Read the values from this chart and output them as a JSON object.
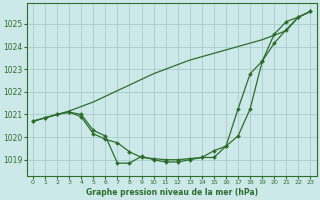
{
  "title": "Graphe pression niveau de la mer (hPa)",
  "bg_color": "#cce8e8",
  "grid_color": "#aacccc",
  "line_color": "#2d6e2d",
  "xlim": [
    -0.5,
    23.5
  ],
  "ylim": [
    1018.3,
    1025.9
  ],
  "yticks": [
    1019,
    1020,
    1021,
    1022,
    1023,
    1024,
    1025
  ],
  "xticks": [
    0,
    1,
    2,
    3,
    4,
    5,
    6,
    7,
    8,
    9,
    10,
    11,
    12,
    13,
    14,
    15,
    16,
    17,
    18,
    19,
    20,
    21,
    22,
    23
  ],
  "line1_x": [
    0,
    1,
    2,
    3,
    4,
    5,
    6,
    7,
    8,
    9,
    10,
    11,
    12,
    13,
    14,
    15,
    16,
    17,
    18,
    19,
    20,
    21,
    22,
    23
  ],
  "line1_y": [
    1020.7,
    1020.85,
    1021.0,
    1021.15,
    1021.35,
    1021.55,
    1021.8,
    1022.05,
    1022.3,
    1022.55,
    1022.8,
    1023.0,
    1023.2,
    1023.4,
    1023.55,
    1023.7,
    1023.85,
    1024.0,
    1024.15,
    1024.3,
    1024.5,
    1024.7,
    1025.3,
    1025.55
  ],
  "line2_x": [
    0,
    1,
    2,
    3,
    4,
    5,
    6,
    7,
    8,
    9,
    10,
    11,
    12,
    13,
    14,
    15,
    16,
    17,
    18,
    19,
    20,
    21,
    22,
    23
  ],
  "line2_y": [
    1020.7,
    1020.85,
    1021.0,
    1021.1,
    1020.9,
    1020.15,
    1019.9,
    1019.75,
    1019.35,
    1019.1,
    1019.05,
    1019.0,
    1019.0,
    1019.05,
    1019.1,
    1019.4,
    1019.6,
    1020.05,
    1021.25,
    1023.35,
    1024.15,
    1024.75,
    1025.3,
    1025.55
  ],
  "line3_x": [
    0,
    1,
    2,
    3,
    4,
    5,
    6,
    7,
    8,
    9,
    10,
    11,
    12,
    13,
    14,
    15,
    16,
    17,
    18,
    19,
    20,
    21,
    22,
    23
  ],
  "line3_y": [
    1020.7,
    1020.85,
    1021.0,
    1021.1,
    1021.0,
    1020.3,
    1020.05,
    1018.85,
    1018.85,
    1019.15,
    1019.0,
    1018.9,
    1018.9,
    1019.0,
    1019.1,
    1019.1,
    1019.6,
    1021.25,
    1022.8,
    1023.35,
    1024.55,
    1025.1,
    1025.3,
    1025.55
  ]
}
